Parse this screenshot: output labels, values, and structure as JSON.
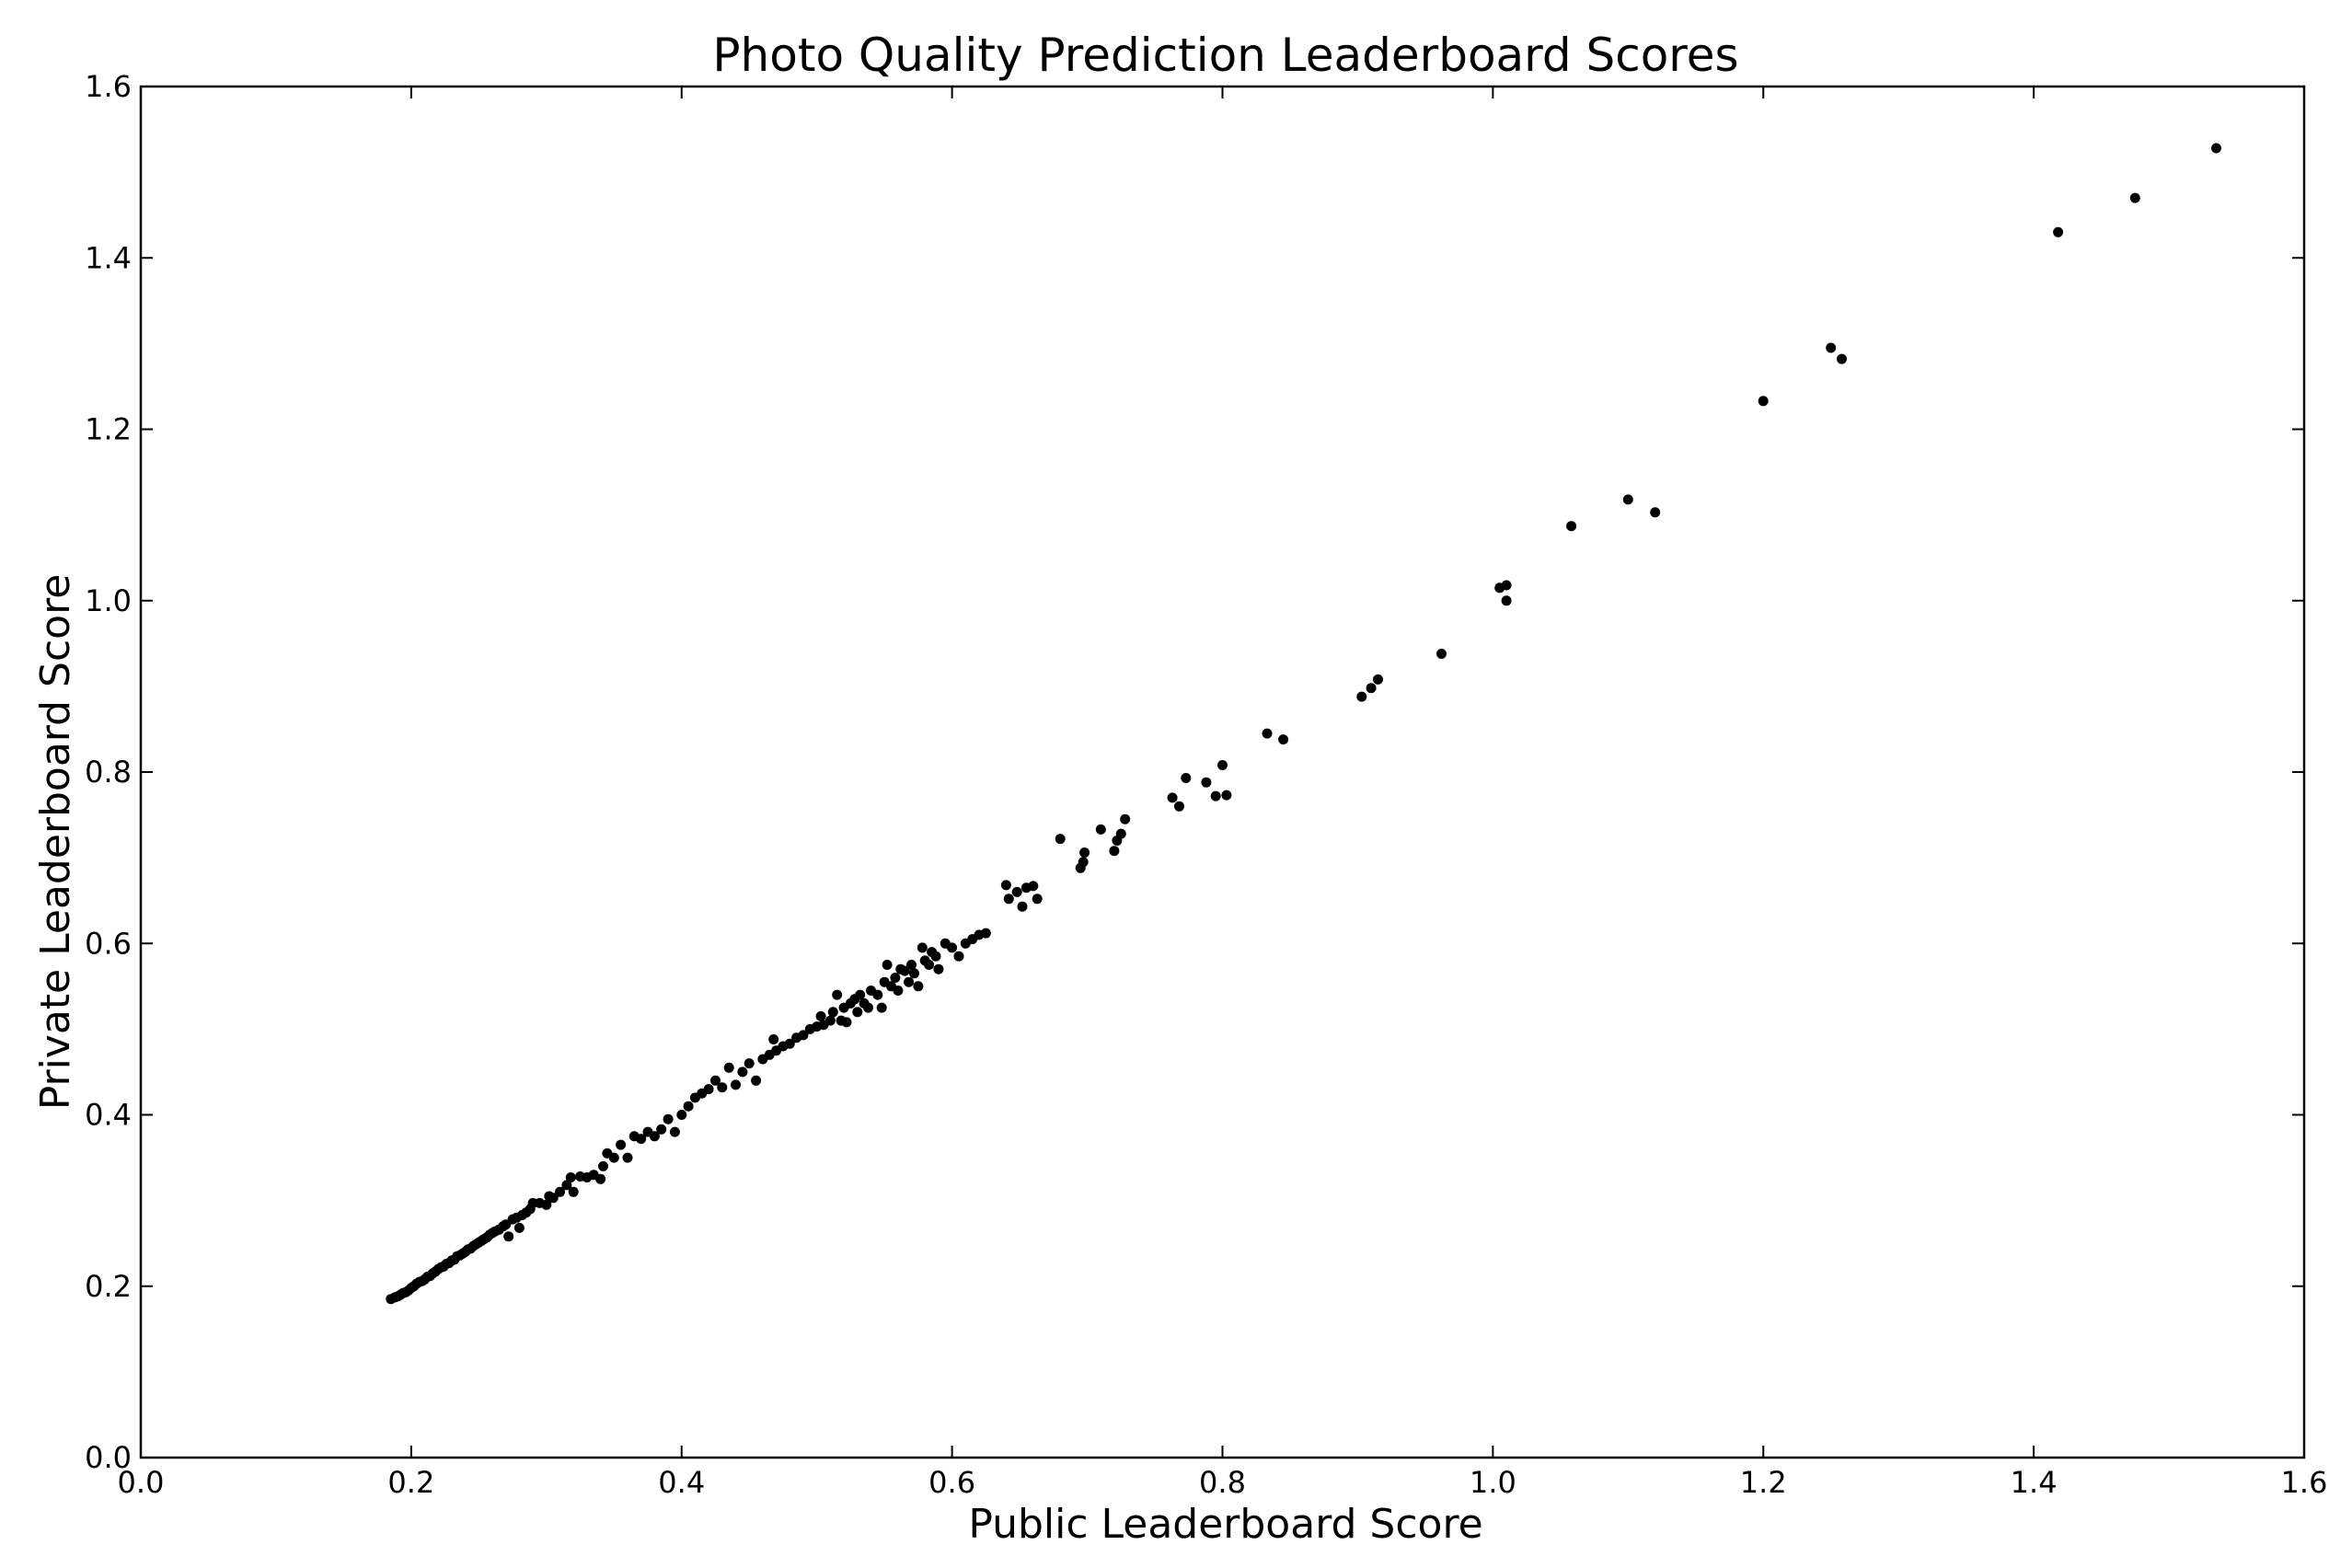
{
  "chart_data": {
    "type": "scatter",
    "title": "Photo Quality Prediction Leaderboard Scores",
    "xlabel": "Public Leaderboard Score",
    "ylabel": "Private Leaderboard Score",
    "xlim": [
      0.0,
      1.6
    ],
    "ylim": [
      0.0,
      1.6
    ],
    "xticks": [
      "0.0",
      "0.2",
      "0.4",
      "0.6",
      "0.8",
      "1.0",
      "1.2",
      "1.4",
      "1.6"
    ],
    "yticks": [
      "0.0",
      "0.2",
      "0.4",
      "0.6",
      "0.8",
      "1.0",
      "1.2",
      "1.4",
      "1.6"
    ],
    "grid": false,
    "marker_color": "#000000",
    "points": [
      [
        0.185,
        0.185
      ],
      [
        0.188,
        0.187
      ],
      [
        0.19,
        0.188
      ],
      [
        0.192,
        0.19
      ],
      [
        0.194,
        0.192
      ],
      [
        0.196,
        0.193
      ],
      [
        0.198,
        0.195
      ],
      [
        0.2,
        0.198
      ],
      [
        0.202,
        0.2
      ],
      [
        0.204,
        0.203
      ],
      [
        0.206,
        0.205
      ],
      [
        0.208,
        0.206
      ],
      [
        0.21,
        0.208
      ],
      [
        0.212,
        0.211
      ],
      [
        0.214,
        0.212
      ],
      [
        0.216,
        0.215
      ],
      [
        0.218,
        0.217
      ],
      [
        0.22,
        0.22
      ],
      [
        0.222,
        0.222
      ],
      [
        0.224,
        0.223
      ],
      [
        0.226,
        0.226
      ],
      [
        0.228,
        0.227
      ],
      [
        0.23,
        0.23
      ],
      [
        0.232,
        0.231
      ],
      [
        0.234,
        0.235
      ],
      [
        0.236,
        0.236
      ],
      [
        0.238,
        0.238
      ],
      [
        0.24,
        0.24
      ],
      [
        0.242,
        0.243
      ],
      [
        0.244,
        0.244
      ],
      [
        0.246,
        0.247
      ],
      [
        0.248,
        0.249
      ],
      [
        0.25,
        0.251
      ],
      [
        0.252,
        0.253
      ],
      [
        0.254,
        0.255
      ],
      [
        0.256,
        0.257
      ],
      [
        0.258,
        0.26
      ],
      [
        0.26,
        0.262
      ],
      [
        0.262,
        0.264
      ],
      [
        0.265,
        0.266
      ],
      [
        0.268,
        0.27
      ],
      [
        0.27,
        0.272
      ],
      [
        0.272,
        0.258
      ],
      [
        0.275,
        0.278
      ],
      [
        0.278,
        0.28
      ],
      [
        0.28,
        0.268
      ],
      [
        0.282,
        0.283
      ],
      [
        0.285,
        0.286
      ],
      [
        0.288,
        0.29
      ],
      [
        0.29,
        0.297
      ],
      [
        0.295,
        0.297
      ],
      [
        0.3,
        0.295
      ],
      [
        0.302,
        0.305
      ],
      [
        0.305,
        0.303
      ],
      [
        0.31,
        0.31
      ],
      [
        0.315,
        0.318
      ],
      [
        0.318,
        0.327
      ],
      [
        0.32,
        0.31
      ],
      [
        0.325,
        0.328
      ],
      [
        0.33,
        0.327
      ],
      [
        0.335,
        0.33
      ],
      [
        0.34,
        0.325
      ],
      [
        0.342,
        0.34
      ],
      [
        0.345,
        0.355
      ],
      [
        0.35,
        0.35
      ],
      [
        0.355,
        0.365
      ],
      [
        0.36,
        0.35
      ],
      [
        0.365,
        0.375
      ],
      [
        0.37,
        0.372
      ],
      [
        0.375,
        0.38
      ],
      [
        0.38,
        0.375
      ],
      [
        0.385,
        0.383
      ],
      [
        0.39,
        0.395
      ],
      [
        0.395,
        0.38
      ],
      [
        0.4,
        0.4
      ],
      [
        0.405,
        0.41
      ],
      [
        0.41,
        0.42
      ],
      [
        0.415,
        0.425
      ],
      [
        0.42,
        0.43
      ],
      [
        0.425,
        0.44
      ],
      [
        0.43,
        0.432
      ],
      [
        0.435,
        0.455
      ],
      [
        0.44,
        0.435
      ],
      [
        0.445,
        0.45
      ],
      [
        0.45,
        0.46
      ],
      [
        0.455,
        0.44
      ],
      [
        0.46,
        0.465
      ],
      [
        0.465,
        0.47
      ],
      [
        0.468,
        0.488
      ],
      [
        0.47,
        0.475
      ],
      [
        0.475,
        0.48
      ],
      [
        0.48,
        0.483
      ],
      [
        0.485,
        0.49
      ],
      [
        0.49,
        0.493
      ],
      [
        0.495,
        0.5
      ],
      [
        0.5,
        0.503
      ],
      [
        0.503,
        0.515
      ],
      [
        0.505,
        0.505
      ],
      [
        0.51,
        0.51
      ],
      [
        0.512,
        0.52
      ],
      [
        0.515,
        0.54
      ],
      [
        0.518,
        0.51
      ],
      [
        0.52,
        0.525
      ],
      [
        0.522,
        0.508
      ],
      [
        0.525,
        0.53
      ],
      [
        0.528,
        0.535
      ],
      [
        0.53,
        0.52
      ],
      [
        0.532,
        0.54
      ],
      [
        0.535,
        0.53
      ],
      [
        0.538,
        0.525
      ],
      [
        0.54,
        0.545
      ],
      [
        0.545,
        0.54
      ],
      [
        0.548,
        0.525
      ],
      [
        0.55,
        0.555
      ],
      [
        0.552,
        0.575
      ],
      [
        0.555,
        0.55
      ],
      [
        0.558,
        0.56
      ],
      [
        0.56,
        0.545
      ],
      [
        0.562,
        0.57
      ],
      [
        0.565,
        0.568
      ],
      [
        0.568,
        0.555
      ],
      [
        0.57,
        0.575
      ],
      [
        0.572,
        0.565
      ],
      [
        0.575,
        0.55
      ],
      [
        0.578,
        0.595
      ],
      [
        0.58,
        0.58
      ],
      [
        0.583,
        0.575
      ],
      [
        0.585,
        0.59
      ],
      [
        0.588,
        0.585
      ],
      [
        0.59,
        0.57
      ],
      [
        0.595,
        0.6
      ],
      [
        0.6,
        0.595
      ],
      [
        0.605,
        0.585
      ],
      [
        0.61,
        0.6
      ],
      [
        0.615,
        0.605
      ],
      [
        0.62,
        0.61
      ],
      [
        0.625,
        0.612
      ],
      [
        0.64,
        0.668
      ],
      [
        0.642,
        0.652
      ],
      [
        0.648,
        0.66
      ],
      [
        0.652,
        0.643
      ],
      [
        0.655,
        0.665
      ],
      [
        0.66,
        0.667
      ],
      [
        0.663,
        0.652
      ],
      [
        0.68,
        0.722
      ],
      [
        0.695,
        0.688
      ],
      [
        0.697,
        0.695
      ],
      [
        0.698,
        0.706
      ],
      [
        0.71,
        0.733
      ],
      [
        0.72,
        0.708
      ],
      [
        0.722,
        0.72
      ],
      [
        0.725,
        0.728
      ],
      [
        0.728,
        0.745
      ],
      [
        0.763,
        0.77
      ],
      [
        0.768,
        0.76
      ],
      [
        0.773,
        0.793
      ],
      [
        0.788,
        0.788
      ],
      [
        0.795,
        0.772
      ],
      [
        0.8,
        0.808
      ],
      [
        0.803,
        0.773
      ],
      [
        0.833,
        0.845
      ],
      [
        0.845,
        0.838
      ],
      [
        0.903,
        0.888
      ],
      [
        0.91,
        0.898
      ],
      [
        0.915,
        0.908
      ],
      [
        0.962,
        0.938
      ],
      [
        1.005,
        1.015
      ],
      [
        1.01,
        1.018
      ],
      [
        1.01,
        1.0
      ],
      [
        1.058,
        1.087
      ],
      [
        1.1,
        1.118
      ],
      [
        1.12,
        1.103
      ],
      [
        1.2,
        1.233
      ],
      [
        1.25,
        1.295
      ],
      [
        1.258,
        1.282
      ],
      [
        1.418,
        1.43
      ],
      [
        1.475,
        1.47
      ],
      [
        1.535,
        1.528
      ]
    ]
  }
}
